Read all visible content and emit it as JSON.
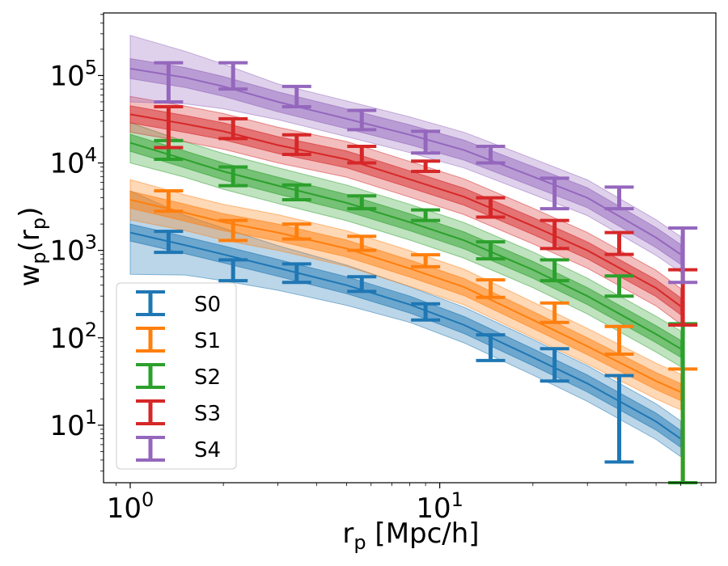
{
  "chart_data": {
    "type": "line",
    "title": "",
    "xlabel": "r",
    "xlabel_sub": "p",
    "xlabel_unit": " [Mpc/h]",
    "ylabel": "w",
    "ylabel_sub": "p",
    "ylabel_paren_open": "(r",
    "ylabel_paren_sub": "p",
    "ylabel_paren_close": ")",
    "xscale": "log",
    "yscale": "log",
    "xlim": [
      0.82,
      78
    ],
    "ylim": [
      2.2,
      520000
    ],
    "x_ticks": [
      {
        "value": 1,
        "base": "10",
        "exp": "0"
      },
      {
        "value": 10,
        "base": "10",
        "exp": "1"
      }
    ],
    "y_ticks": [
      {
        "value": 10,
        "base": "10",
        "exp": "1"
      },
      {
        "value": 100,
        "base": "10",
        "exp": "2"
      },
      {
        "value": 1000,
        "base": "10",
        "exp": "3"
      },
      {
        "value": 10000,
        "base": "10",
        "exp": "4"
      },
      {
        "value": 100000,
        "base": "10",
        "exp": "5"
      }
    ],
    "legend_position": "lower-left",
    "grid": false,
    "model_x": [
      1,
      1.5,
      2,
      3,
      5,
      8,
      12,
      20,
      30,
      50,
      60
    ],
    "data_x": [
      1.33,
      2.15,
      3.45,
      5.6,
      9.0,
      14.6,
      23.5,
      38.0,
      61.0
    ],
    "series": [
      {
        "name": "S0",
        "color": "#1f77b4",
        "model_y": [
          1600,
          1150,
          900,
          630,
          400,
          240,
          140,
          60,
          30,
          11,
          7
        ],
        "inner_factor": 1.25,
        "outer_factor": [
          3.0,
          2.2,
          2.0,
          1.8,
          1.7,
          1.6,
          1.6,
          1.6,
          1.6,
          1.6,
          1.6
        ],
        "data_low": [
          950,
          450,
          430,
          340,
          160,
          55,
          32,
          3.8,
          null
        ],
        "data_high": [
          1650,
          780,
          700,
          500,
          245,
          108,
          75,
          37,
          null
        ]
      },
      {
        "name": "S1",
        "color": "#ff7f0e",
        "model_y": [
          3800,
          2700,
          2100,
          1600,
          1050,
          620,
          380,
          160,
          80,
          32,
          24
        ],
        "inner_factor": 1.25,
        "outer_factor": [
          1.7,
          1.6,
          1.6,
          1.6,
          1.6,
          1.6,
          1.6,
          1.6,
          1.6,
          1.6,
          1.6
        ],
        "data_low": [
          2800,
          1300,
          1350,
          1000,
          650,
          290,
          150,
          65,
          2.2
        ],
        "data_high": [
          4800,
          2200,
          2000,
          1450,
          890,
          460,
          250,
          135,
          44
        ]
      },
      {
        "name": "S2",
        "color": "#2ca02c",
        "model_y": [
          17000,
          11000,
          8000,
          5500,
          3500,
          2100,
          1300,
          600,
          300,
          110,
          75
        ],
        "inner_factor": 1.25,
        "outer_factor": [
          1.7,
          1.6,
          1.6,
          1.6,
          1.6,
          1.6,
          1.6,
          1.6,
          1.6,
          1.6,
          1.6
        ],
        "data_low": [
          11000,
          5500,
          3800,
          3000,
          2200,
          800,
          450,
          300,
          2.2
        ],
        "data_high": [
          18000,
          9000,
          5600,
          4200,
          2900,
          1250,
          780,
          510,
          145
        ]
      },
      {
        "name": "S3",
        "color": "#d62728",
        "model_y": [
          36000,
          28000,
          23000,
          16000,
          11000,
          6500,
          4100,
          1900,
          1000,
          370,
          230
        ],
        "inner_factor": 1.25,
        "outer_factor": [
          1.6,
          1.6,
          1.6,
          1.6,
          1.6,
          1.6,
          1.6,
          1.6,
          1.6,
          1.6,
          1.6
        ],
        "data_low": [
          15000,
          19000,
          12500,
          10000,
          8000,
          2400,
          1050,
          900,
          140
        ],
        "data_high": [
          44000,
          32000,
          21000,
          15500,
          10500,
          4000,
          2200,
          1600,
          600
        ]
      },
      {
        "name": "S4",
        "color": "#9467bd",
        "model_y": [
          120000,
          95000,
          75000,
          50000,
          32000,
          21000,
          14000,
          7000,
          4000,
          1400,
          900
        ],
        "inner_factor": 1.3,
        "outer_factor": [
          2.4,
          2.0,
          1.8,
          1.6,
          1.6,
          1.6,
          1.6,
          1.6,
          1.6,
          1.6,
          1.6
        ],
        "data_low": [
          50000,
          70000,
          44000,
          24000,
          13000,
          10000,
          3000,
          3000,
          430
        ],
        "data_high": [
          140000,
          140000,
          75000,
          40000,
          23000,
          15500,
          6700,
          5300,
          1800
        ]
      }
    ]
  }
}
